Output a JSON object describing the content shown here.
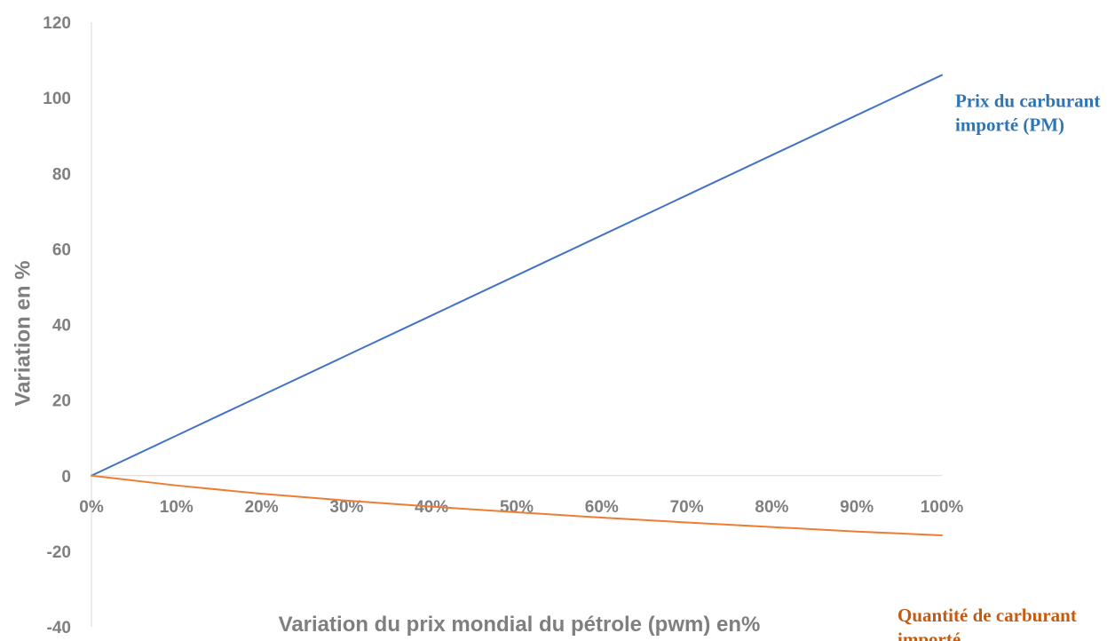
{
  "chart_data": {
    "type": "line",
    "x": [
      "0%",
      "10%",
      "20%",
      "30%",
      "40%",
      "50%",
      "60%",
      "70%",
      "80%",
      "90%",
      "100%"
    ],
    "series": [
      {
        "name": "Prix du carburant importé (PM)",
        "values": [
          0,
          10.6,
          21.2,
          31.8,
          42.4,
          53,
          63.6,
          74.2,
          84.8,
          95.4,
          106
        ],
        "color": "#4472c4"
      },
      {
        "name": "Quantité de carburant importé",
        "values": [
          0,
          -2.6,
          -4.8,
          -6.6,
          -8.2,
          -9.7,
          -11.1,
          -12.4,
          -13.6,
          -14.8,
          -15.8
        ],
        "color": "#ed7d31"
      }
    ],
    "xlabel": "Variation du prix mondial du pétrole (pwm) en%",
    "ylabel": "Variation en %",
    "ylim": [
      -40,
      120
    ],
    "yticks": [
      "-40",
      "-20",
      "0",
      "20",
      "40",
      "60",
      "80",
      "100",
      "120"
    ],
    "grid": false,
    "annotations": [
      {
        "series": 0,
        "lines": [
          "Prix du carburant",
          "importé (PM)"
        ],
        "color": "#2e75b6"
      },
      {
        "series": 1,
        "lines": [
          "Quantité de carburant",
          "importé"
        ],
        "color": "#c55a11"
      }
    ]
  }
}
